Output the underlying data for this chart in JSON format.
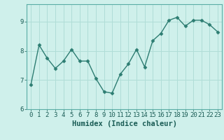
{
  "x": [
    0,
    1,
    2,
    3,
    4,
    5,
    6,
    7,
    8,
    9,
    10,
    11,
    12,
    13,
    14,
    15,
    16,
    17,
    18,
    19,
    20,
    21,
    22,
    23
  ],
  "y": [
    6.85,
    8.2,
    7.75,
    7.4,
    7.65,
    8.05,
    7.65,
    7.65,
    7.05,
    6.6,
    6.55,
    7.2,
    7.55,
    8.05,
    7.45,
    8.35,
    8.6,
    9.05,
    9.15,
    8.85,
    9.05,
    9.05,
    8.9,
    8.65
  ],
  "line_color": "#2d7d72",
  "marker": "D",
  "marker_size": 2.5,
  "background_color": "#cff0eb",
  "grid_color": "#b0ddd7",
  "xlabel": "Humidex (Indice chaleur)",
  "ylim": [
    6.0,
    9.6
  ],
  "xlim": [
    -0.5,
    23.5
  ],
  "yticks": [
    6,
    7,
    8,
    9
  ],
  "xticks": [
    0,
    1,
    2,
    3,
    4,
    5,
    6,
    7,
    8,
    9,
    10,
    11,
    12,
    13,
    14,
    15,
    16,
    17,
    18,
    19,
    20,
    21,
    22,
    23
  ],
  "tick_fontsize": 6.5,
  "xlabel_fontsize": 7.5,
  "line_width": 1.0
}
